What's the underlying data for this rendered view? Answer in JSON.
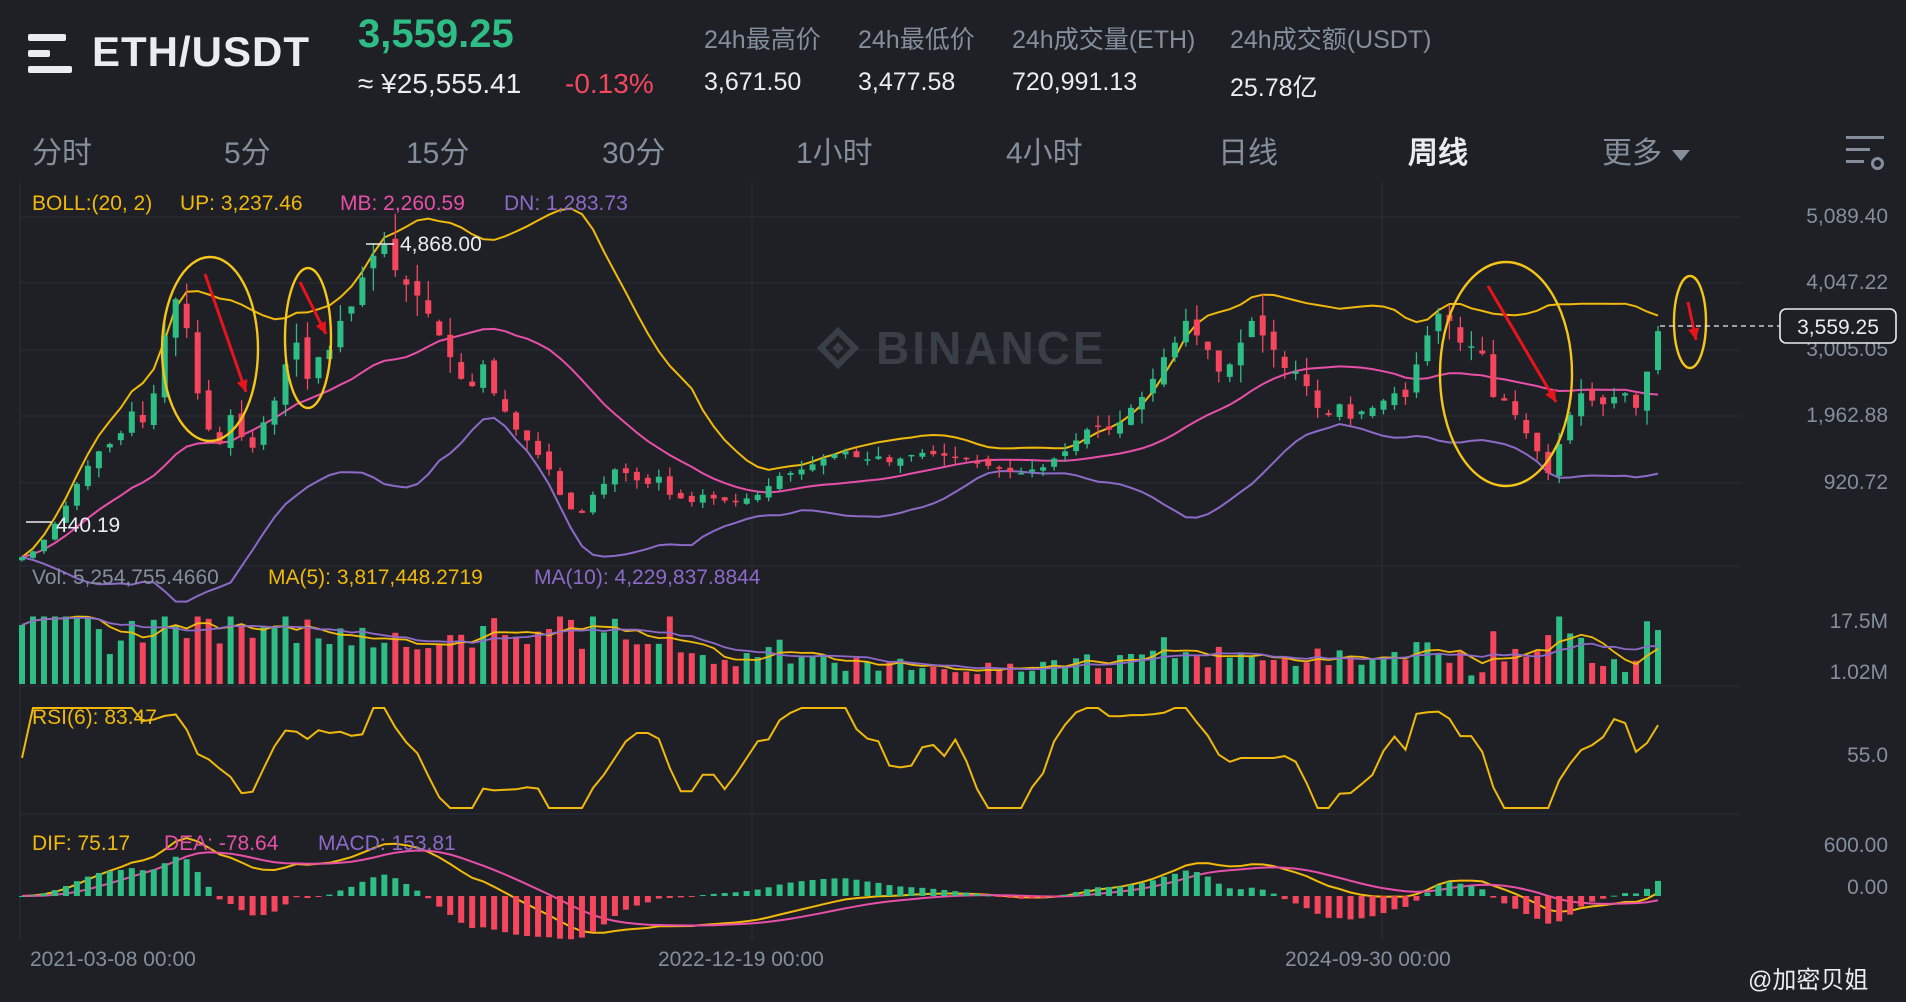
{
  "header": {
    "pair": "ETH/USDT",
    "last_price": "3,559.25",
    "cny_price": "≈ ¥25,555.41",
    "change_pct": "-0.13%",
    "stats": [
      {
        "label": "24h最高价",
        "value": "3,671.50"
      },
      {
        "label": "24h最低价",
        "value": "3,477.58"
      },
      {
        "label": "24h成交量(ETH)",
        "value": "720,991.13"
      },
      {
        "label": "24h成交额(USDT)",
        "value": "25.78亿"
      }
    ]
  },
  "tabs": [
    "分时",
    "5分",
    "15分",
    "30分",
    "1小时",
    "4小时",
    "日线",
    "周线",
    "更多"
  ],
  "active_tab": "周线",
  "icons": {
    "menu": "menu-icon",
    "settings": "chart-settings-icon",
    "watermark_logo": "binance-logo-icon",
    "dropdown": "caret-down-icon"
  },
  "colors": {
    "up": "#2ebd85",
    "down": "#f6465d",
    "boll_up": "#f0b90b",
    "boll_mb": "#e84fa8",
    "boll_dn": "#8e6ac8",
    "annotation": "#f5c518",
    "arrow": "#e8141c"
  },
  "watermark": {
    "text": "BINANCE"
  },
  "credit": "@加密贝姐",
  "chart_data": {
    "type": "candlestick",
    "interval": "周线",
    "price_axis_ticks": [
      "5,089.40",
      "4,047.22",
      "3,005.05",
      "1,962.88",
      "920.72"
    ],
    "price_range": [
      400,
      5300
    ],
    "x_ticks": [
      "2021-03-08 00:00",
      "2022-12-19 00:00",
      "2024-09-30 00:00"
    ],
    "current_price_label": "3,559.25",
    "high_label": "4,868.00",
    "low_label": "440.19",
    "indicators": {
      "boll": {
        "label": "BOLL:(20, 2)",
        "up": "UP: 3,237.46",
        "mb": "MB: 2,260.59",
        "dn": "DN: 1,283.73"
      },
      "vol": {
        "label": "Vol: 5,254,755.4660",
        "ma5": "MA(5): 3,817,448.2719",
        "ma10": "MA(10): 4,229,837.8844",
        "ticks": [
          "17.5M",
          "1.02M"
        ]
      },
      "rsi": {
        "label": "RSI(6): 83.47",
        "ticks": [
          "55.0"
        ]
      },
      "macd": {
        "dif": "DIF: 75.17",
        "dea": "DEA: -78.64",
        "macd": "MACD: 153.81",
        "ticks": [
          "600.00",
          "0.00"
        ]
      }
    },
    "close_series_weekly": [
      440,
      520,
      680,
      900,
      1150,
      1450,
      1700,
      1900,
      2000,
      2150,
      2450,
      2300,
      2700,
      3500,
      4000,
      3600,
      2700,
      2200,
      2000,
      2400,
      2100,
      1950,
      2300,
      2600,
      3100,
      3400,
      2900,
      3200,
      3300,
      3700,
      3900,
      4300,
      4600,
      4750,
      4400,
      4200,
      4050,
      3800,
      3500,
      3200,
      2900,
      2800,
      3100,
      2700,
      2450,
      2200,
      2050,
      1850,
      1650,
      1300,
      1100,
      1050,
      1300,
      1450,
      1650,
      1600,
      1500,
      1450,
      1550,
      1300,
      1250,
      1200,
      1300,
      1250,
      1220,
      1200,
      1250,
      1300,
      1420,
      1560,
      1600,
      1650,
      1720,
      1800,
      1860,
      1900,
      1820,
      1790,
      1830,
      1750,
      1800,
      1850,
      1880,
      1860,
      1840,
      1820,
      1790,
      1750,
      1700,
      1660,
      1620,
      1600,
      1650,
      1680,
      1800,
      1900,
      2050,
      2200,
      2250,
      2200,
      2300,
      2500,
      2650,
      2900,
      3200,
      3400,
      3700,
      3500,
      3300,
      3000,
      3100,
      3400,
      3700,
      3500,
      3300,
      3050,
      3000,
      2800,
      2500,
      2400,
      2550,
      2350,
      2450,
      2500,
      2600,
      2700,
      2650,
      3100,
      3500,
      3800,
      3700,
      3400,
      3350,
      3250,
      2650,
      2600,
      2400,
      2150,
      1900,
      1600,
      2000,
      2400,
      2700,
      2600,
      2550,
      2650,
      2700,
      2500,
      3000,
      3559
    ]
  }
}
